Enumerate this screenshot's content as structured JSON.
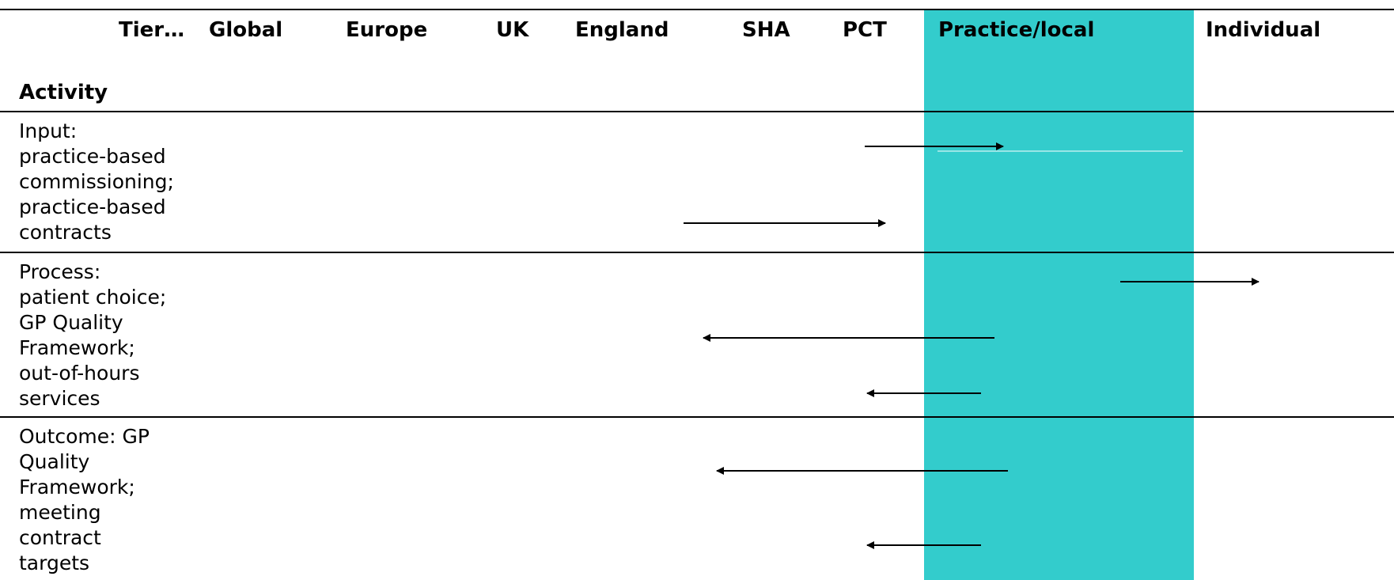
{
  "table": {
    "tier_header": "Tier…",
    "activity_header": "Activity",
    "columns": [
      "Global",
      "Europe",
      "UK",
      "England",
      "SHA",
      "PCT",
      "Practice/local",
      "Individual"
    ],
    "highlighted_column": "Practice/local",
    "highlight_color": "#33cccc"
  },
  "rows": [
    {
      "lines": [
        "Input:",
        "practice-based",
        "commissioning;",
        "practice-based",
        "contracts"
      ]
    },
    {
      "lines": [
        "Process:",
        "patient choice;",
        "GP Quality",
        "Framework;",
        "out-of-hours",
        "services"
      ]
    },
    {
      "lines": [
        "Outcome: GP",
        "Quality",
        "Framework;",
        "meeting",
        "contract",
        "targets"
      ]
    }
  ]
}
